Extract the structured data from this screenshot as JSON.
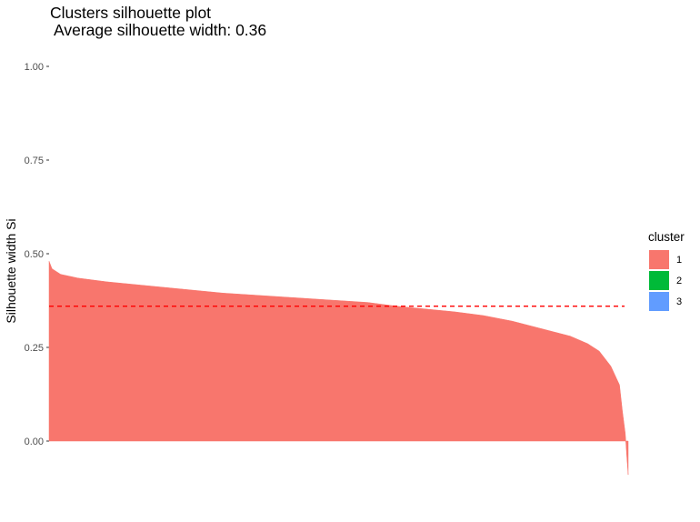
{
  "chart_data": {
    "type": "bar",
    "title": "Clusters silhouette plot",
    "subtitle": "Average silhouette width: 0.36",
    "xlabel": "",
    "ylabel": "Silhouette width Si",
    "ylim": [
      -0.1,
      1.0
    ],
    "y_ticks": [
      0.0,
      0.25,
      0.5,
      0.75,
      1.0
    ],
    "y_tick_labels": [
      "0.00",
      "0.25",
      "0.50",
      "0.75",
      "1.00"
    ],
    "average_line": 0.36,
    "grid": false,
    "legend_position": "right",
    "series": [
      {
        "name": "1",
        "color": "#F8766D",
        "profile_rank": [
          0,
          0.005,
          0.02,
          0.05,
          0.1,
          0.2,
          0.3,
          0.4,
          0.5,
          0.55,
          0.6,
          0.7,
          0.75,
          0.8,
          0.85,
          0.9,
          0.93,
          0.95,
          0.97,
          0.985,
          0.99,
          0.995,
          0.998,
          1.0
        ],
        "profile_values": [
          0.48,
          0.46,
          0.445,
          0.435,
          0.425,
          0.41,
          0.395,
          0.385,
          0.375,
          0.37,
          0.36,
          0.345,
          0.335,
          0.32,
          0.3,
          0.28,
          0.26,
          0.24,
          0.2,
          0.15,
          0.08,
          0.02,
          -0.05,
          -0.09
        ]
      }
    ],
    "legend": {
      "title": "cluster",
      "entries": [
        {
          "label": "1",
          "color": "#F8766D"
        },
        {
          "label": "2",
          "color": "#00BA38"
        },
        {
          "label": "3",
          "color": "#619CFF"
        }
      ]
    },
    "average_line_color": "#FF0000"
  }
}
